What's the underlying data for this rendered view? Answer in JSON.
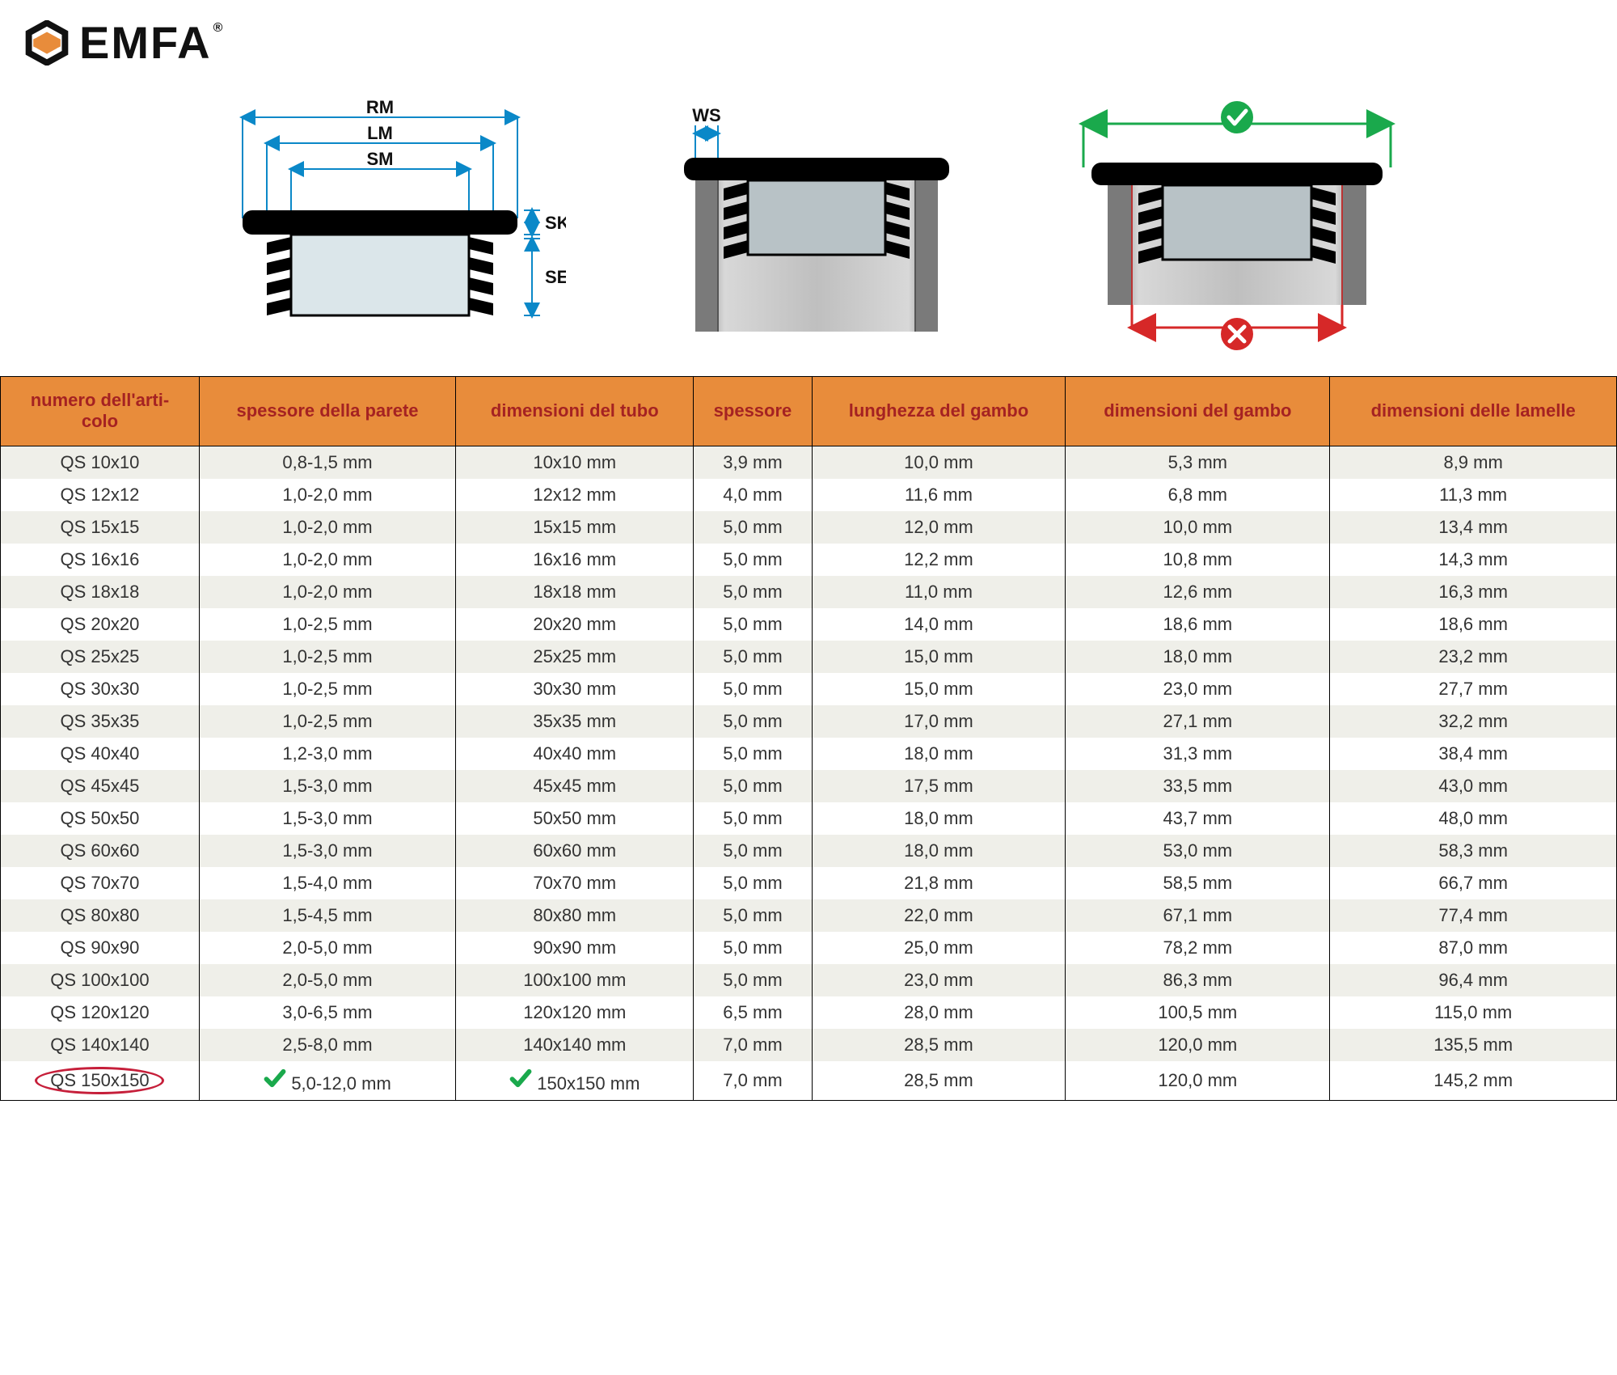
{
  "brand": {
    "name": "EMFA",
    "registered": "®"
  },
  "colors": {
    "brand_orange": "#e88c3b",
    "header_text": "#a52222",
    "row_odd": "#efefe9",
    "row_even": "#ffffff",
    "border": "#000000",
    "highlight": "#c61f3a",
    "check_green": "#1aa94c",
    "dim_blue": "#0a88c8",
    "cross_red": "#d62828"
  },
  "diagram_labels": {
    "RM": "RM",
    "LM": "LM",
    "SM": "SM",
    "SK": "SK",
    "SE": "SE",
    "WS": "WS"
  },
  "table": {
    "columns": [
      "numero dell'arti-\ncolo",
      "spessore della parete",
      "dimensioni del tubo",
      "spessore",
      "lunghezza del gambo",
      "dimensioni del gambo",
      "dimensioni delle lamelle"
    ],
    "rows": [
      [
        "QS 10x10",
        "0,8-1,5 mm",
        "10x10 mm",
        "3,9 mm",
        "10,0 mm",
        "5,3 mm",
        "8,9 mm"
      ],
      [
        "QS 12x12",
        "1,0-2,0 mm",
        "12x12 mm",
        "4,0 mm",
        "11,6 mm",
        "6,8 mm",
        "11,3 mm"
      ],
      [
        "QS 15x15",
        "1,0-2,0 mm",
        "15x15 mm",
        "5,0 mm",
        "12,0 mm",
        "10,0 mm",
        "13,4 mm"
      ],
      [
        "QS 16x16",
        "1,0-2,0 mm",
        "16x16 mm",
        "5,0 mm",
        "12,2 mm",
        "10,8 mm",
        "14,3 mm"
      ],
      [
        "QS 18x18",
        "1,0-2,0 mm",
        "18x18 mm",
        "5,0 mm",
        "11,0 mm",
        "12,6 mm",
        "16,3 mm"
      ],
      [
        "QS 20x20",
        "1,0-2,5 mm",
        "20x20 mm",
        "5,0 mm",
        "14,0 mm",
        "18,6 mm",
        "18,6 mm"
      ],
      [
        "QS 25x25",
        "1,0-2,5 mm",
        "25x25 mm",
        "5,0 mm",
        "15,0 mm",
        "18,0 mm",
        "23,2 mm"
      ],
      [
        "QS 30x30",
        "1,0-2,5 mm",
        "30x30 mm",
        "5,0 mm",
        "15,0 mm",
        "23,0 mm",
        "27,7 mm"
      ],
      [
        "QS 35x35",
        "1,0-2,5 mm",
        "35x35 mm",
        "5,0 mm",
        "17,0 mm",
        "27,1 mm",
        "32,2 mm"
      ],
      [
        "QS 40x40",
        "1,2-3,0 mm",
        "40x40 mm",
        "5,0 mm",
        "18,0 mm",
        "31,3 mm",
        "38,4 mm"
      ],
      [
        "QS 45x45",
        "1,5-3,0 mm",
        "45x45 mm",
        "5,0 mm",
        "17,5 mm",
        "33,5 mm",
        "43,0 mm"
      ],
      [
        "QS 50x50",
        "1,5-3,0 mm",
        "50x50 mm",
        "5,0 mm",
        "18,0 mm",
        "43,7 mm",
        "48,0 mm"
      ],
      [
        "QS 60x60",
        "1,5-3,0 mm",
        "60x60 mm",
        "5,0 mm",
        "18,0 mm",
        "53,0 mm",
        "58,3 mm"
      ],
      [
        "QS 70x70",
        "1,5-4,0 mm",
        "70x70 mm",
        "5,0 mm",
        "21,8 mm",
        "58,5 mm",
        "66,7 mm"
      ],
      [
        "QS 80x80",
        "1,5-4,5 mm",
        "80x80 mm",
        "5,0 mm",
        "22,0 mm",
        "67,1 mm",
        "77,4 mm"
      ],
      [
        "QS 90x90",
        "2,0-5,0 mm",
        "90x90 mm",
        "5,0 mm",
        "25,0 mm",
        "78,2 mm",
        "87,0 mm"
      ],
      [
        "QS 100x100",
        "2,0-5,0 mm",
        "100x100 mm",
        "5,0 mm",
        "23,0 mm",
        "86,3 mm",
        "96,4 mm"
      ],
      [
        "QS 120x120",
        "3,0-6,5 mm",
        "120x120 mm",
        "6,5 mm",
        "28,0 mm",
        "100,5 mm",
        "115,0 mm"
      ],
      [
        "QS 140x140",
        "2,5-8,0 mm",
        "140x140 mm",
        "7,0 mm",
        "28,5 mm",
        "120,0 mm",
        "135,5 mm"
      ],
      [
        "QS 150x150",
        "5,0-12,0 mm",
        "150x150 mm",
        "7,0 mm",
        "28,5 mm",
        "120,0 mm",
        "145,2 mm"
      ]
    ],
    "highlight_row_index": 19,
    "highlight_col0": true,
    "check_cols_on_highlight_row": [
      1,
      2
    ]
  }
}
